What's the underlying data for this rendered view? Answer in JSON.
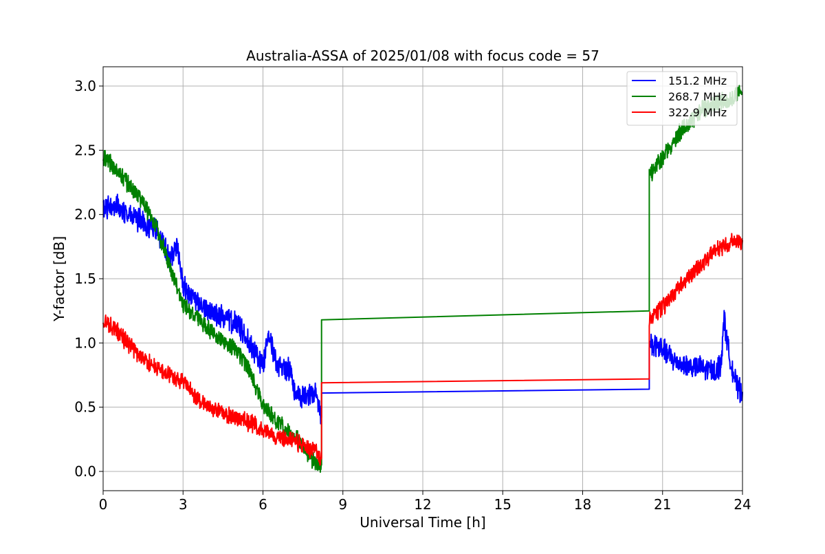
{
  "chart_data": {
    "type": "line",
    "title": "Australia-ASSA of 2025/01/08 with focus code = 57",
    "xlabel": "Universal Time [h]",
    "ylabel": "Y-factor [dB]",
    "xlim": [
      0,
      24
    ],
    "ylim": [
      -0.15,
      3.15
    ],
    "xticks": [
      0,
      3,
      6,
      9,
      12,
      15,
      18,
      21,
      24
    ],
    "xtick_labels": [
      "0",
      "3",
      "6",
      "9",
      "12",
      "15",
      "18",
      "21",
      "24"
    ],
    "yticks": [
      0.0,
      0.5,
      1.0,
      1.5,
      2.0,
      2.5,
      3.0
    ],
    "ytick_labels": [
      "0.0",
      "0.5",
      "1.0",
      "1.5",
      "2.0",
      "2.5",
      "3.0"
    ],
    "grid": true,
    "legend_position": "top-right",
    "noise_note": "series are noisy time-series; noise_amplitude is the visible peak fluctuation in dB",
    "series": [
      {
        "name": "151.2 MHz",
        "color": "#0000ff",
        "noise_amplitude": 0.08,
        "segments": [
          {
            "x": [
              0.0,
              0.5,
              1.0,
              1.5,
              2.0,
              2.5,
              2.8,
              3.0,
              3.5,
              4.0,
              4.5,
              5.0,
              5.5,
              6.0,
              6.2,
              6.5,
              7.0,
              7.2,
              7.5,
              8.0,
              8.2
            ],
            "y": [
              2.05,
              2.07,
              2.0,
              1.93,
              1.88,
              1.65,
              1.75,
              1.45,
              1.3,
              1.25,
              1.2,
              1.15,
              1.0,
              0.82,
              1.12,
              0.82,
              0.8,
              0.62,
              0.58,
              0.6,
              0.42
            ]
          },
          {
            "x": [
              8.2,
              20.5
            ],
            "y": [
              0.61,
              0.64
            ],
            "noise_amplitude": 0
          },
          {
            "x": [
              20.5,
              21.0,
              21.5,
              22.0,
              22.5,
              23.0,
              23.2,
              23.3,
              23.5,
              23.8,
              24.0
            ],
            "y": [
              1.0,
              0.95,
              0.85,
              0.82,
              0.8,
              0.78,
              0.85,
              1.2,
              0.9,
              0.65,
              0.62
            ]
          }
        ]
      },
      {
        "name": "268.7 MHz",
        "color": "#008000",
        "noise_amplitude": 0.06,
        "segments": [
          {
            "x": [
              0.0,
              0.5,
              1.0,
              1.5,
              2.0,
              2.5,
              3.0,
              3.5,
              4.0,
              4.5,
              5.0,
              5.5,
              6.0,
              6.5,
              7.0,
              7.5,
              8.0,
              8.2
            ],
            "y": [
              2.45,
              2.35,
              2.22,
              2.1,
              1.9,
              1.6,
              1.3,
              1.2,
              1.1,
              1.02,
              0.95,
              0.78,
              0.52,
              0.4,
              0.3,
              0.2,
              0.05,
              0.05
            ]
          },
          {
            "x": [
              8.2,
              20.5
            ],
            "y": [
              1.18,
              1.25
            ],
            "noise_amplitude": 0
          },
          {
            "x": [
              20.5,
              21.0,
              21.5,
              22.0,
              22.5,
              23.0,
              23.5,
              24.0
            ],
            "y": [
              2.3,
              2.45,
              2.6,
              2.72,
              2.82,
              2.86,
              2.9,
              2.95
            ]
          }
        ]
      },
      {
        "name": "322.9 MHz",
        "color": "#ff0000",
        "noise_amplitude": 0.06,
        "segments": [
          {
            "x": [
              0.0,
              0.5,
              1.0,
              1.5,
              2.0,
              2.5,
              3.0,
              3.5,
              4.0,
              4.5,
              5.0,
              5.5,
              6.0,
              6.5,
              7.0,
              7.5,
              8.0,
              8.2
            ],
            "y": [
              1.17,
              1.1,
              0.98,
              0.88,
              0.8,
              0.75,
              0.7,
              0.58,
              0.5,
              0.45,
              0.42,
              0.38,
              0.32,
              0.27,
              0.25,
              0.2,
              0.15,
              0.1
            ]
          },
          {
            "x": [
              8.2,
              20.5
            ],
            "y": [
              0.69,
              0.72
            ],
            "noise_amplitude": 0
          },
          {
            "x": [
              20.5,
              21.0,
              21.5,
              22.0,
              22.5,
              23.0,
              23.5,
              24.0
            ],
            "y": [
              1.18,
              1.28,
              1.4,
              1.52,
              1.62,
              1.72,
              1.78,
              1.8
            ]
          }
        ]
      }
    ]
  }
}
